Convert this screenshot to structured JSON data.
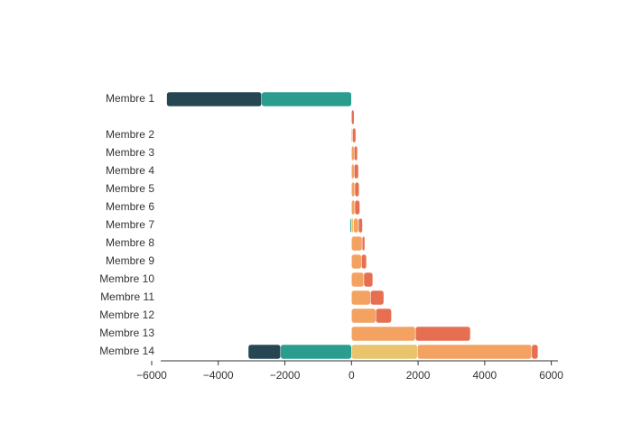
{
  "chart_data": {
    "type": "bar",
    "orientation": "horizontal",
    "stacked": true,
    "categories": [
      "Membre 1",
      null,
      "Membre 2",
      "Membre 3",
      "Membre 4",
      "Membre 5",
      "Membre 6",
      "Membre 7",
      "Membre 8",
      "Membre 9",
      "Membre 10",
      "Membre 11",
      "Membre 12",
      "Membre 13",
      "Membre 14"
    ],
    "series": [
      {
        "color": "#2a9d8f",
        "values": [
          -2700,
          0,
          0,
          0,
          0,
          0,
          0,
          -40,
          0,
          0,
          0,
          0,
          0,
          0,
          -2130
        ]
      },
      {
        "color": "#264653",
        "values": [
          -2850,
          0,
          0,
          0,
          0,
          0,
          0,
          0,
          0,
          0,
          0,
          0,
          0,
          0,
          -970
        ]
      },
      {
        "color": "#e9c46a",
        "values": [
          0,
          0,
          0,
          0,
          0,
          0,
          0,
          60,
          0,
          0,
          0,
          0,
          0,
          0,
          1980
        ]
      },
      {
        "color": "#f4a261",
        "values": [
          0,
          0,
          30,
          80,
          80,
          100,
          100,
          150,
          320,
          300,
          370,
          570,
          730,
          1920,
          3430
        ]
      },
      {
        "color": "#e76f51",
        "values": [
          0,
          80,
          100,
          100,
          130,
          130,
          150,
          120,
          80,
          150,
          270,
          400,
          470,
          1650,
          190
        ]
      }
    ],
    "xlim": [
      -6000,
      6200
    ],
    "xticks": [
      {
        "value": -6000,
        "label": "−6000"
      },
      {
        "value": -4000,
        "label": "−4000"
      },
      {
        "value": -2000,
        "label": "−2000"
      },
      0,
      2000,
      4000,
      6000
    ]
  }
}
